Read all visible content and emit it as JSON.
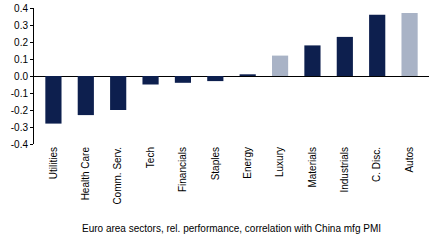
{
  "chart_data": {
    "type": "bar",
    "title": "Euro area sectors, rel. performance, correlation with China mfg PMI",
    "categories": [
      "Utilities",
      "Health Care",
      "Comm. Serv.",
      "Tech",
      "Financials",
      "Staples",
      "Energy",
      "Luxury",
      "Materials",
      "Industrials",
      "C. Disc.",
      "Autos"
    ],
    "values": [
      -0.28,
      -0.23,
      -0.2,
      -0.05,
      -0.04,
      -0.03,
      0.01,
      0.12,
      0.18,
      0.23,
      0.36,
      0.37
    ],
    "colors": [
      "#0d1f4e",
      "#0d1f4e",
      "#0d1f4e",
      "#0d1f4e",
      "#0d1f4e",
      "#0d1f4e",
      "#0d1f4e",
      "#a9b3c6",
      "#0d1f4e",
      "#0d1f4e",
      "#0d1f4e",
      "#a9b3c6"
    ],
    "ylim": [
      -0.4,
      0.4
    ],
    "yticks": [
      -0.4,
      -0.3,
      -0.2,
      -0.1,
      {
        "value": 0,
        "label": "0.0"
      },
      0.1,
      0.2,
      0.3,
      0.4
    ],
    "grid": false
  }
}
